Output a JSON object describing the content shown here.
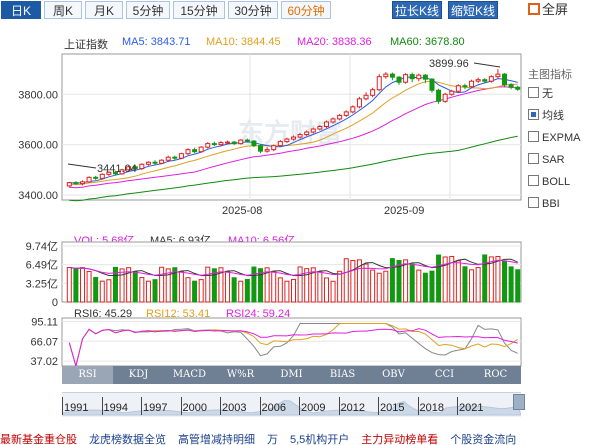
{
  "toolbar": {
    "tabs": [
      "日K",
      "周K",
      "月K",
      "5分钟",
      "15分钟",
      "30分钟",
      "60分钟"
    ],
    "btn_stretch": "拉长K线",
    "btn_shorten": "缩短K线",
    "fullscreen": "全屏"
  },
  "stock": {
    "name": "上证指数",
    "ma5": "MA5: 3843.71",
    "ma10": "MA10: 3844.45",
    "ma20": "MA20: 3838.36",
    "ma60": "MA60: 3678.80"
  },
  "colors": {
    "ma5": "#2b5ce6",
    "ma10": "#e0a020",
    "ma20": "#e020e0",
    "ma60": "#118a11",
    "up": "#dd2222",
    "down": "#119911",
    "grid": "#e6e6e6"
  },
  "legend": {
    "title": "主图指标",
    "items": [
      {
        "label": "无",
        "checked": false
      },
      {
        "label": "均线",
        "checked": true
      },
      {
        "label": "EXPMA",
        "checked": false
      },
      {
        "label": "SAR",
        "checked": false
      },
      {
        "label": "BOLL",
        "checked": false
      },
      {
        "label": "BBI",
        "checked": false
      }
    ]
  },
  "main_chart": {
    "y_ticks": [
      "3800.00",
      "3600.00",
      "3400.00"
    ],
    "x_ticks": [
      "2025-08",
      "2025-09"
    ],
    "high_label": "3899.96",
    "low_label": "3441.04",
    "watermark": "东方财富"
  },
  "volume": {
    "vol": "VOL: 5.68亿",
    "ma5": "MA5: 6.93亿",
    "ma10": "MA10: 6.56亿",
    "y_ticks": [
      "9.74亿",
      "6.49亿",
      "3.25亿",
      "0"
    ]
  },
  "rsi": {
    "rsi6": "RSI6: 45.29",
    "rsi12": "RSI12: 53.41",
    "rsi24": "RSI24: 59.24",
    "y_ticks": [
      "95.11",
      "66.07",
      "37.02"
    ]
  },
  "indicator_tabs": [
    "RSI",
    "KDJ",
    "MACD",
    "W%R",
    "DMI",
    "BIAS",
    "OBV",
    "CCI",
    "ROC"
  ],
  "timeline_years": [
    "1991",
    "1994",
    "1997",
    "2000",
    "2003",
    "2006",
    "2009",
    "2012",
    "2015",
    "2018",
    "2021"
  ],
  "bottom_links": [
    "最新基金重仓股",
    "龙虎榜数据全览",
    "高管增减持明细",
    "万",
    "5,5机构开户",
    "主力异动榜单看",
    "个股资金流向"
  ],
  "chart_data": {
    "type": "candlestick",
    "title": "上证指数",
    "x_ticks": [
      "2025-08",
      "2025-09"
    ],
    "ylim": [
      3380,
      3960
    ],
    "candles": [
      [
        3436,
        3449,
        3430,
        3452
      ],
      [
        3449,
        3445,
        3440,
        3455
      ],
      [
        3445,
        3452,
        3438,
        3458
      ],
      [
        3452,
        3470,
        3448,
        3474
      ],
      [
        3470,
        3466,
        3460,
        3476
      ],
      [
        3466,
        3482,
        3462,
        3486
      ],
      [
        3482,
        3490,
        3476,
        3494
      ],
      [
        3490,
        3484,
        3478,
        3496
      ],
      [
        3484,
        3500,
        3480,
        3504
      ],
      [
        3500,
        3512,
        3496,
        3518
      ],
      [
        3512,
        3505,
        3500,
        3518
      ],
      [
        3505,
        3522,
        3500,
        3526
      ],
      [
        3522,
        3530,
        3516,
        3534
      ],
      [
        3530,
        3526,
        3520,
        3538
      ],
      [
        3526,
        3538,
        3522,
        3542
      ],
      [
        3538,
        3550,
        3532,
        3556
      ],
      [
        3550,
        3546,
        3540,
        3556
      ],
      [
        3546,
        3564,
        3542,
        3568
      ],
      [
        3564,
        3580,
        3558,
        3586
      ],
      [
        3580,
        3572,
        3566,
        3588
      ],
      [
        3572,
        3590,
        3568,
        3594
      ],
      [
        3590,
        3604,
        3584,
        3610
      ],
      [
        3604,
        3600,
        3594,
        3612
      ],
      [
        3600,
        3608,
        3594,
        3614
      ],
      [
        3608,
        3610,
        3602,
        3616
      ],
      [
        3610,
        3604,
        3598,
        3614
      ],
      [
        3604,
        3618,
        3600,
        3622
      ],
      [
        3618,
        3614,
        3608,
        3624
      ],
      [
        3614,
        3596,
        3590,
        3618
      ],
      [
        3596,
        3574,
        3566,
        3600
      ],
      [
        3574,
        3580,
        3568,
        3590
      ],
      [
        3580,
        3596,
        3574,
        3600
      ],
      [
        3596,
        3612,
        3590,
        3618
      ],
      [
        3612,
        3622,
        3606,
        3628
      ],
      [
        3622,
        3630,
        3616,
        3636
      ],
      [
        3630,
        3640,
        3624,
        3646
      ],
      [
        3640,
        3650,
        3634,
        3656
      ],
      [
        3650,
        3662,
        3644,
        3668
      ],
      [
        3662,
        3672,
        3656,
        3678
      ],
      [
        3672,
        3690,
        3666,
        3696
      ],
      [
        3690,
        3702,
        3684,
        3708
      ],
      [
        3702,
        3716,
        3696,
        3722
      ],
      [
        3716,
        3730,
        3710,
        3736
      ],
      [
        3730,
        3750,
        3724,
        3756
      ],
      [
        3750,
        3782,
        3744,
        3790
      ],
      [
        3782,
        3796,
        3776,
        3808
      ],
      [
        3796,
        3818,
        3788,
        3826
      ],
      [
        3818,
        3870,
        3812,
        3880
      ],
      [
        3870,
        3880,
        3862,
        3888
      ],
      [
        3880,
        3868,
        3856,
        3886
      ],
      [
        3868,
        3848,
        3838,
        3872
      ],
      [
        3848,
        3878,
        3842,
        3884
      ],
      [
        3878,
        3862,
        3848,
        3886
      ],
      [
        3862,
        3876,
        3852,
        3882
      ],
      [
        3876,
        3860,
        3844,
        3880
      ],
      [
        3860,
        3816,
        3806,
        3864
      ],
      [
        3816,
        3772,
        3762,
        3822
      ],
      [
        3772,
        3800,
        3766,
        3806
      ],
      [
        3800,
        3812,
        3794,
        3818
      ],
      [
        3812,
        3834,
        3806,
        3840
      ],
      [
        3834,
        3830,
        3820,
        3842
      ],
      [
        3830,
        3852,
        3826,
        3858
      ],
      [
        3852,
        3858,
        3846,
        3866
      ],
      [
        3858,
        3852,
        3844,
        3864
      ],
      [
        3852,
        3870,
        3846,
        3876
      ],
      [
        3870,
        3880,
        3862,
        3900
      ],
      [
        3880,
        3838,
        3828,
        3884
      ],
      [
        3838,
        3828,
        3820,
        3844
      ],
      [
        3828,
        3820,
        3814,
        3834
      ]
    ]
  }
}
